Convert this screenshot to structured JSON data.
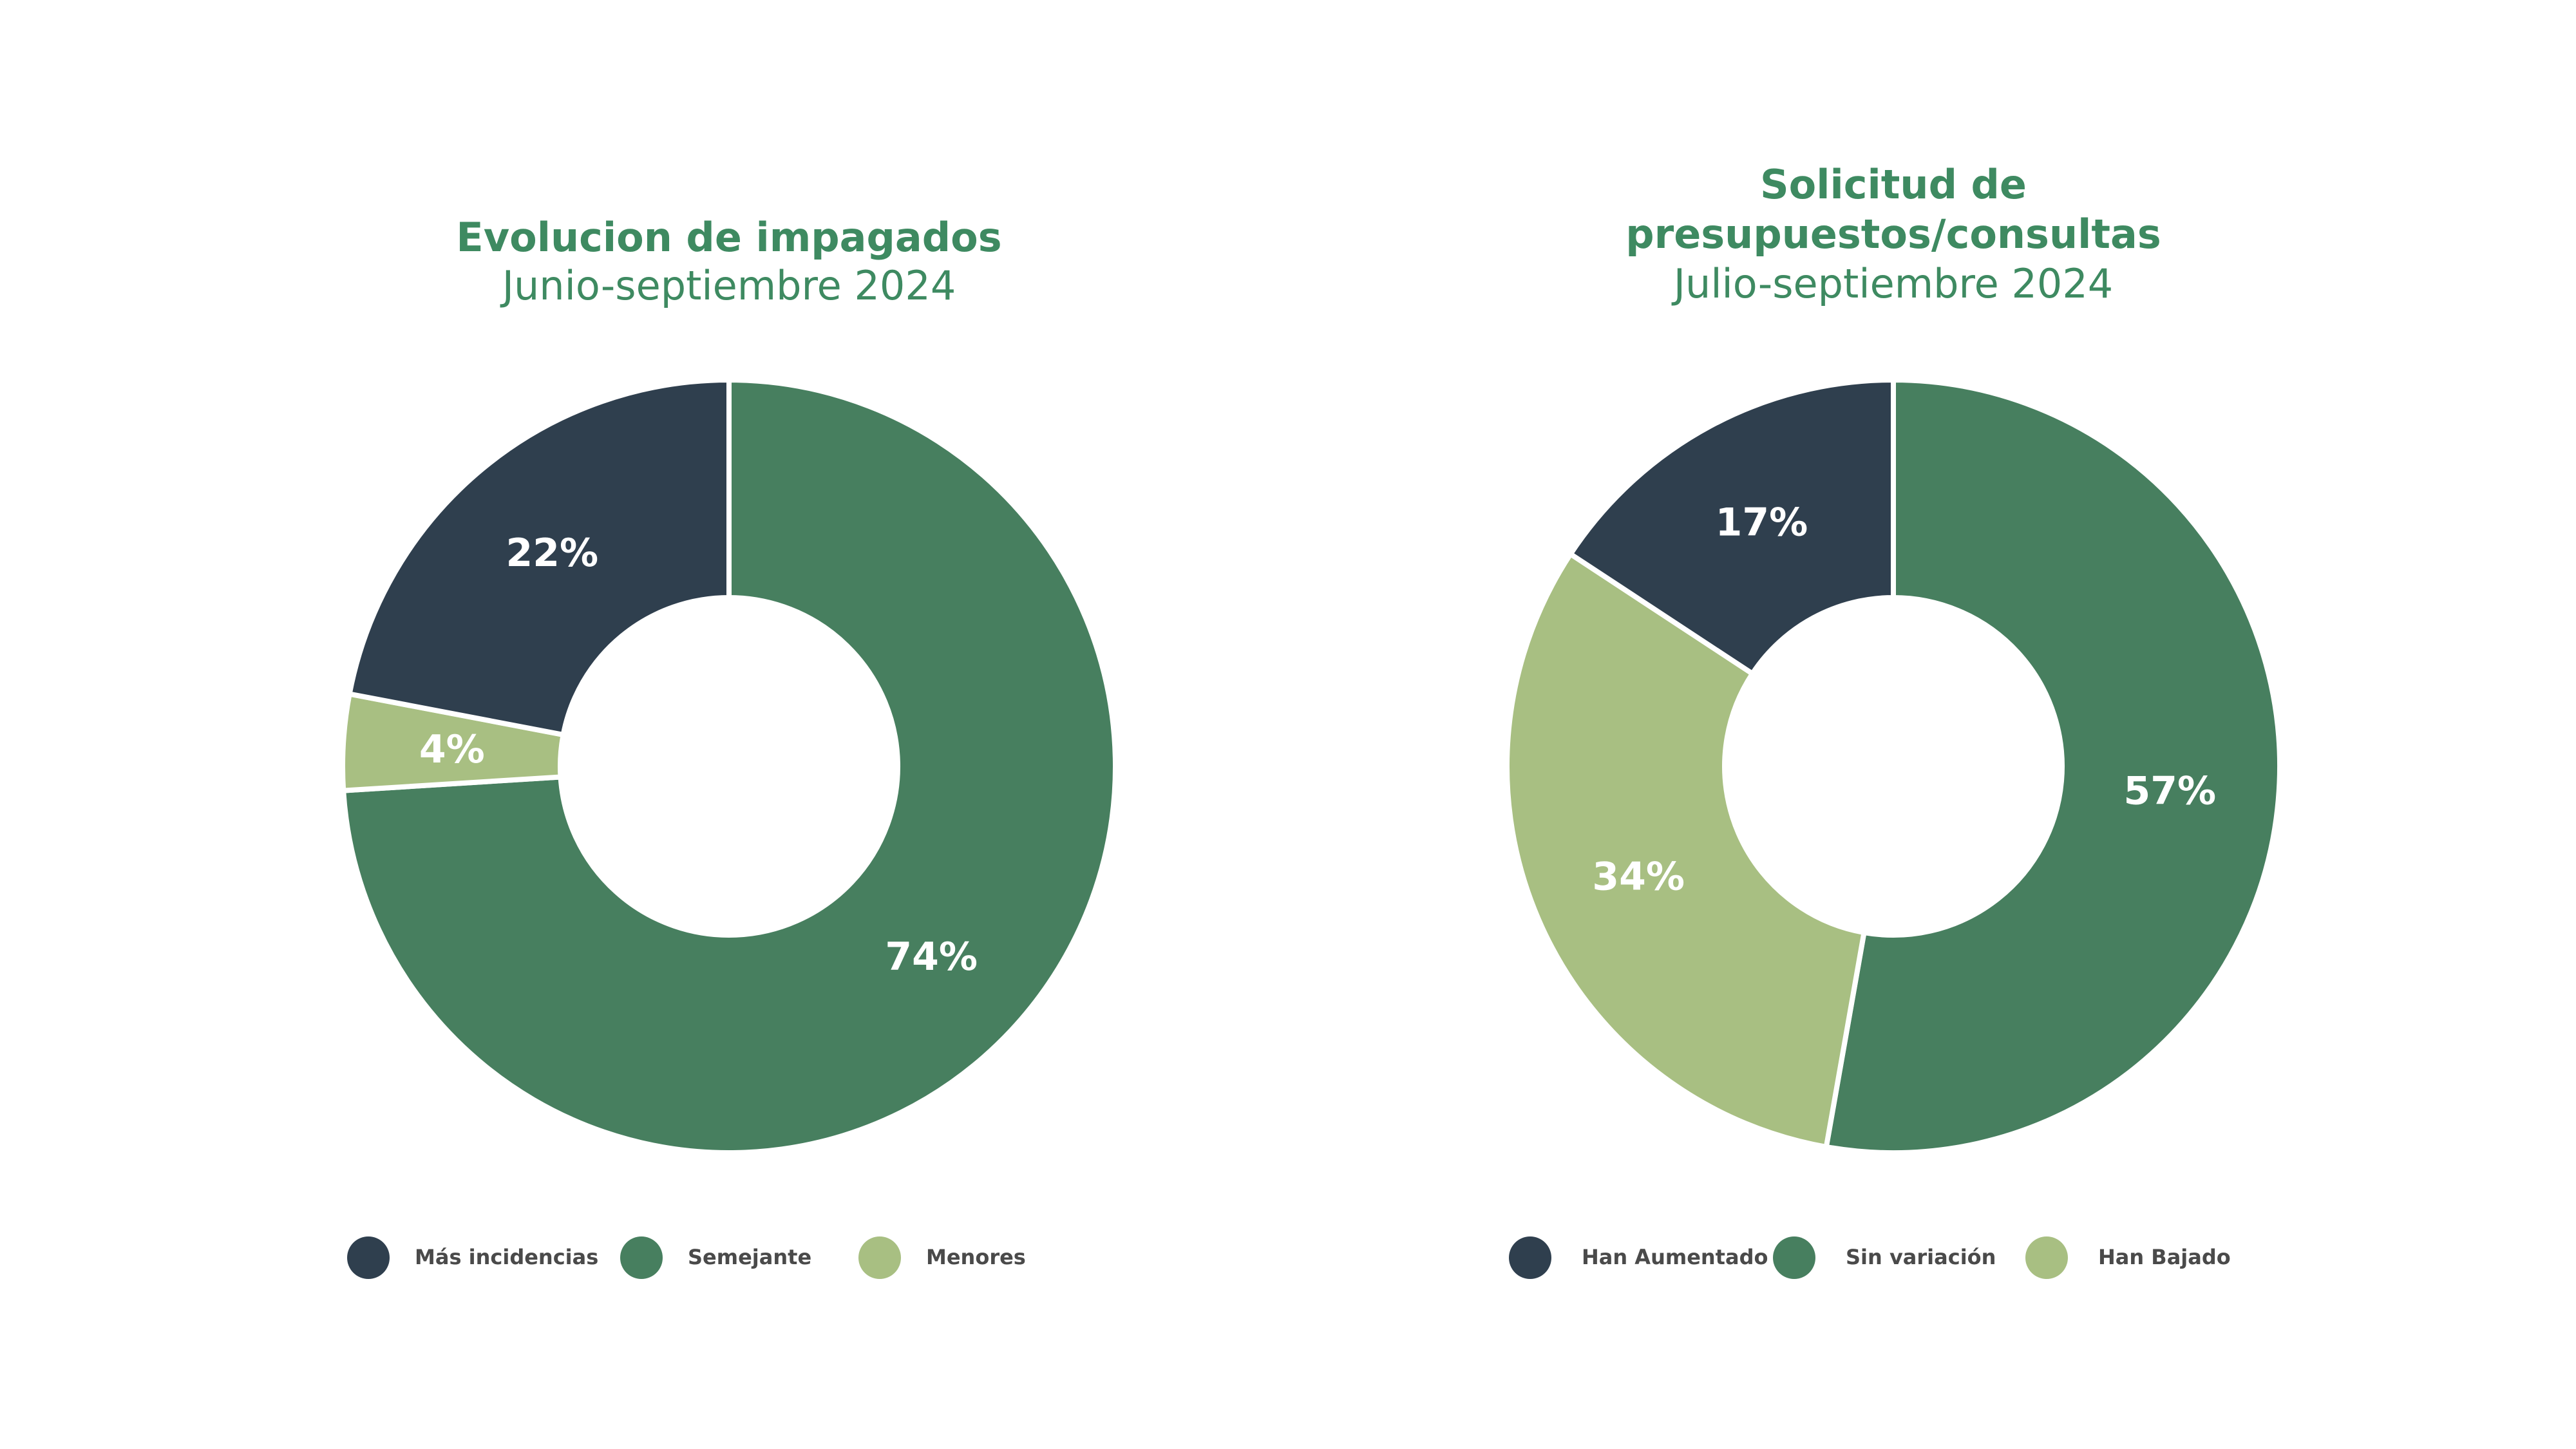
{
  "chart_data": [
    {
      "type": "pie",
      "variant": "donut",
      "title": "Evolucion de impagados",
      "subtitle": "Junio-septiembre 2024",
      "start_category": "Semejante",
      "categories": [
        "Más incidencias",
        "Semejante",
        "Menores"
      ],
      "values": [
        22,
        74,
        4
      ],
      "value_labels": [
        "22%",
        "74%",
        "4%"
      ],
      "colors": [
        "#2f3f4e",
        "#477f5f",
        "#a8bf82"
      ],
      "legend_position": "bottom"
    },
    {
      "type": "pie",
      "variant": "donut",
      "title_lines": [
        "Solicitud de",
        "presupuestos/consultas"
      ],
      "subtitle": "Julio-septiembre 2024",
      "start_category": "Sin variación",
      "categories": [
        "Han Aumentado",
        "Sin variación",
        "Han Bajado"
      ],
      "values": [
        17,
        57,
        34
      ],
      "value_labels": [
        "17%",
        "57%",
        "34%"
      ],
      "colors": [
        "#2f3f4e",
        "#477f5f",
        "#a8bf82"
      ],
      "legend_position": "bottom"
    }
  ]
}
